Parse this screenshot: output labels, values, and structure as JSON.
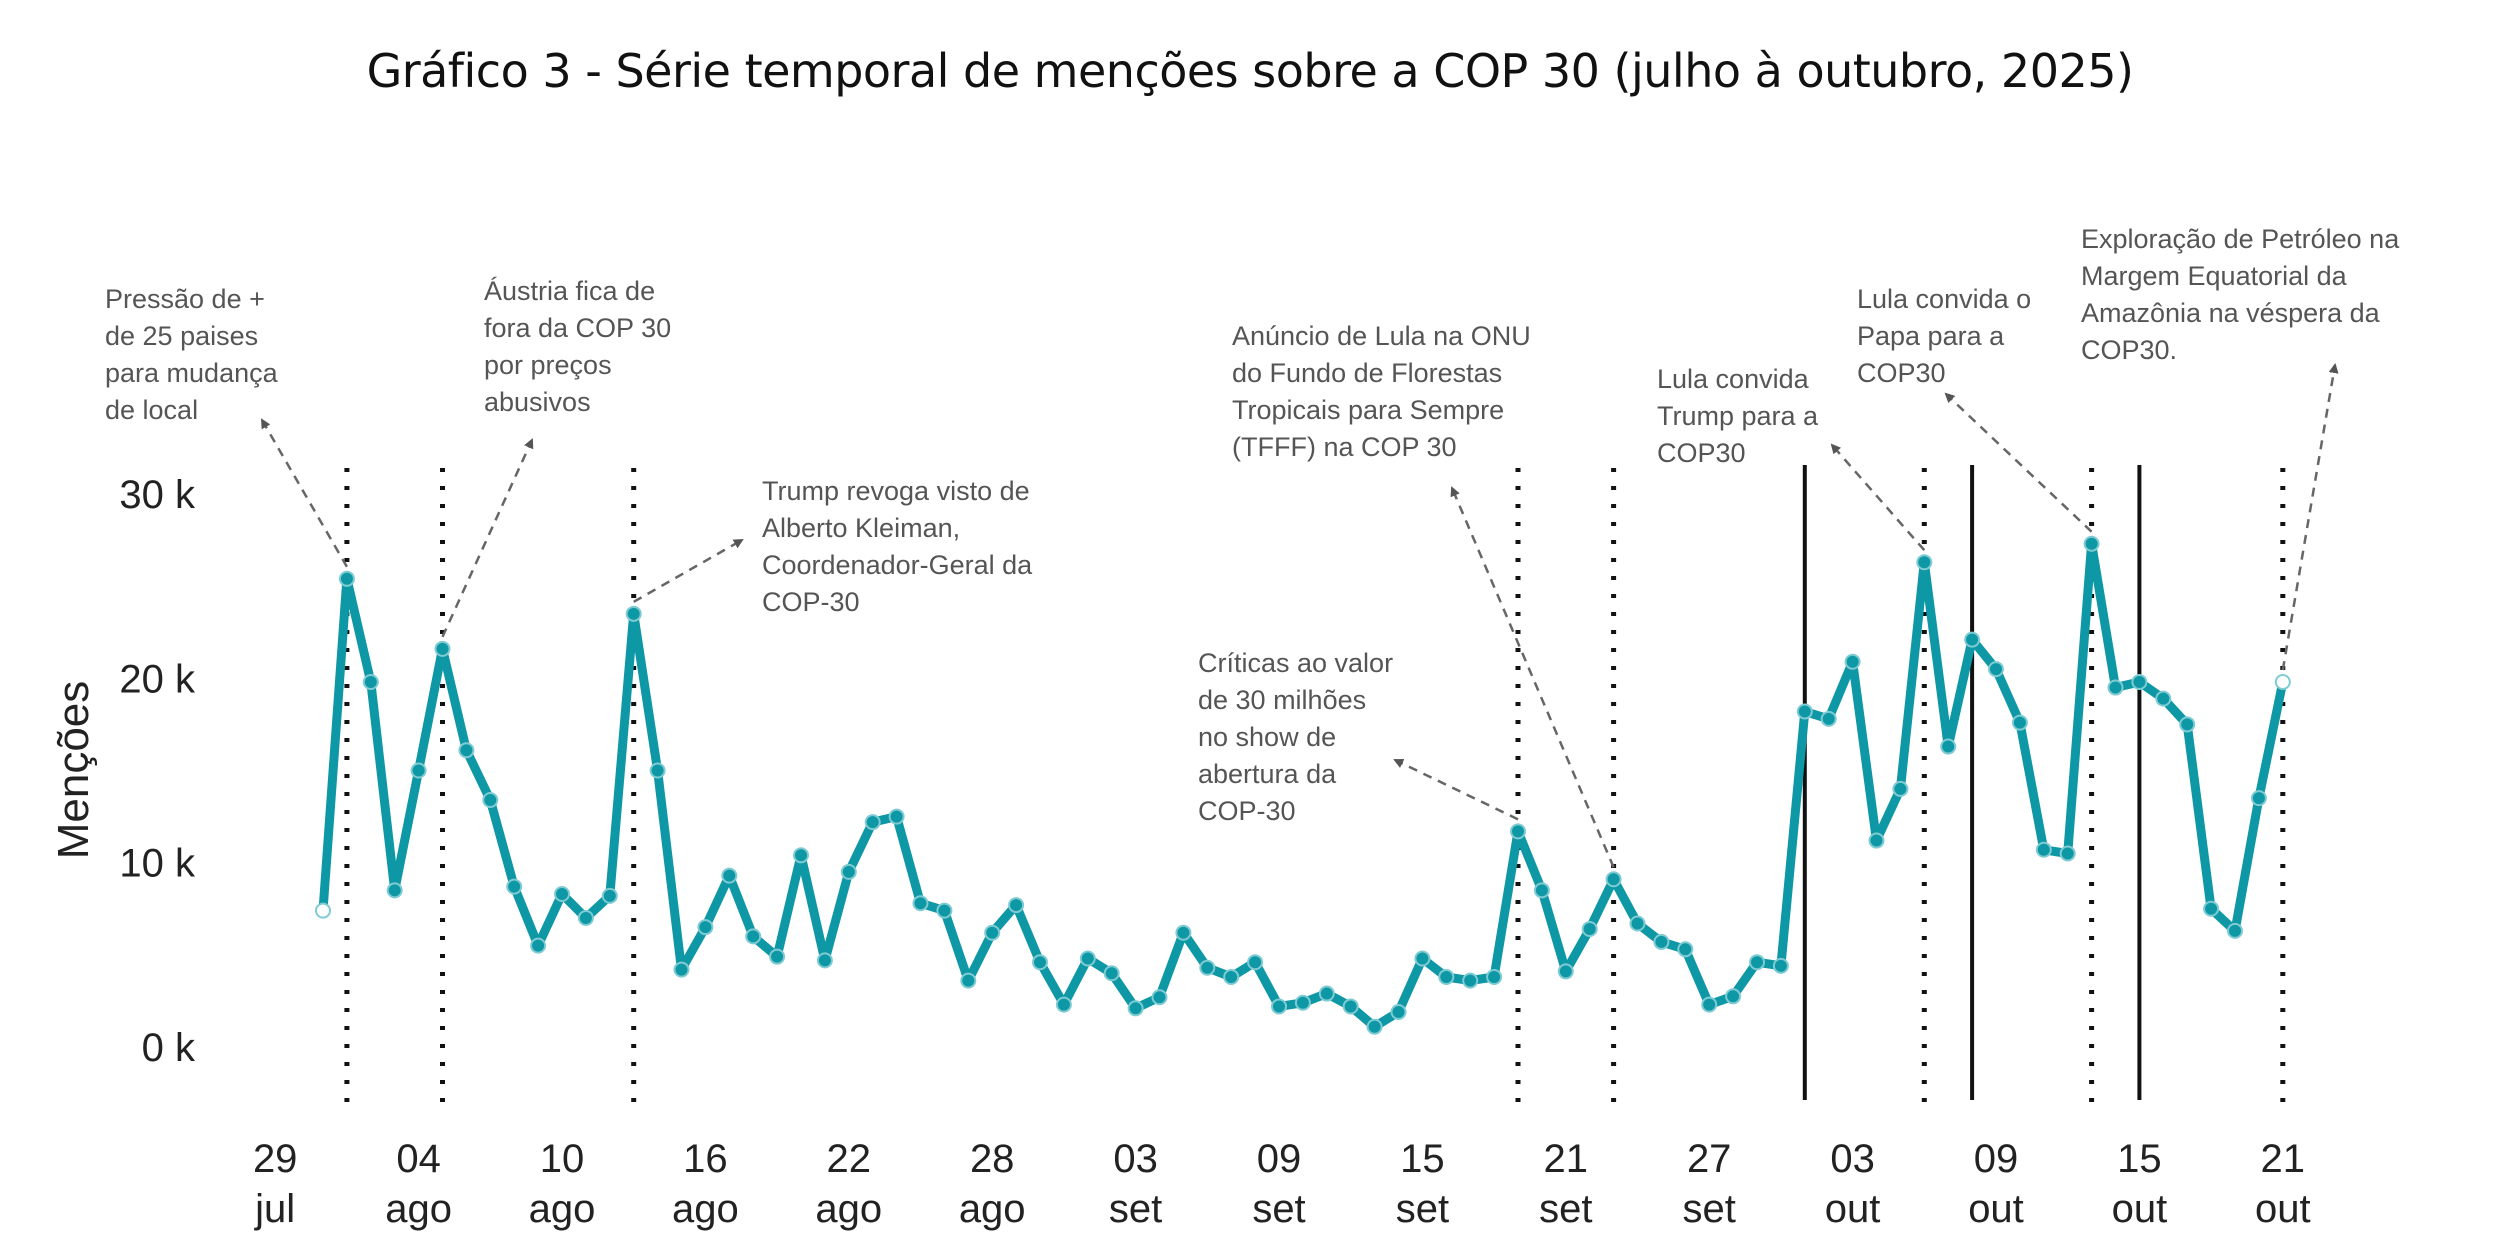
{
  "title": "Gráfico 3 - Série temporal de menções sobre a COP 30 (julho à outubro, 2025)",
  "chart_data": {
    "type": "line",
    "title": "Gráfico 3 - Série temporal de menções sobre a COP 30 (julho à outubro, 2025)",
    "xlabel": "",
    "ylabel": "Menções",
    "start_date": "2025-07-31",
    "x_unit": "day",
    "ylim": [
      0,
      30000
    ],
    "grid": false,
    "line_color": "#0e98a6",
    "yticks": [
      {
        "value": 0,
        "label": "0 k"
      },
      {
        "value": 10000,
        "label": "10 k"
      },
      {
        "value": 20000,
        "label": "20 k"
      },
      {
        "value": 30000,
        "label": "30 k"
      }
    ],
    "xticks": [
      {
        "day": "29",
        "month": "jul",
        "offset": -2
      },
      {
        "day": "04",
        "month": "ago",
        "offset": 4
      },
      {
        "day": "10",
        "month": "ago",
        "offset": 10
      },
      {
        "day": "16",
        "month": "ago",
        "offset": 16
      },
      {
        "day": "22",
        "month": "ago",
        "offset": 22
      },
      {
        "day": "28",
        "month": "ago",
        "offset": 28
      },
      {
        "day": "03",
        "month": "set",
        "offset": 34
      },
      {
        "day": "09",
        "month": "set",
        "offset": 40
      },
      {
        "day": "15",
        "month": "set",
        "offset": 46
      },
      {
        "day": "21",
        "month": "set",
        "offset": 52
      },
      {
        "day": "27",
        "month": "set",
        "offset": 58
      },
      {
        "day": "03",
        "month": "out",
        "offset": 64
      },
      {
        "day": "09",
        "month": "out",
        "offset": 70
      },
      {
        "day": "15",
        "month": "out",
        "offset": 76
      },
      {
        "day": "21",
        "month": "out",
        "offset": 82
      }
    ],
    "series": [
      {
        "name": "Menções",
        "values": [
          7400,
          25400,
          19800,
          8500,
          15000,
          21600,
          16100,
          13400,
          8700,
          5500,
          8300,
          7000,
          8200,
          23500,
          15000,
          4200,
          6500,
          9300,
          6000,
          4900,
          10400,
          4700,
          9500,
          12200,
          12500,
          7800,
          7400,
          3600,
          6200,
          7700,
          4600,
          2300,
          4800,
          4000,
          2100,
          2700,
          6200,
          4300,
          3800,
          4600,
          2200,
          2400,
          2900,
          2200,
          1100,
          1900,
          4800,
          3800,
          3600,
          3800,
          11700,
          8500,
          4100,
          6400,
          9100,
          6700,
          5700,
          5300,
          2300,
          2750,
          4600,
          4400,
          18200,
          17800,
          20900,
          11200,
          14000,
          26300,
          16300,
          22100,
          20500,
          17600,
          10700,
          10500,
          27300,
          19500,
          19800,
          18900,
          17500,
          7500,
          6300,
          13500,
          19800
        ]
      }
    ],
    "event_lines_dotted": [
      1,
      5,
      13,
      50,
      54,
      67,
      74,
      82
    ],
    "event_lines_solid": [
      62,
      69,
      76
    ],
    "annotations": [
      {
        "lines": [
          "Pressão de +",
          "de 25 paises",
          "para mudança",
          "de local"
        ],
        "anchor_index": 1
      },
      {
        "lines": [
          "Áustria fica de",
          "fora da COP 30",
          "por preços",
          "abusivos"
        ],
        "anchor_index": 5
      },
      {
        "lines": [
          "Trump revoga visto de",
          "Alberto Kleiman,",
          "Coordenador-Geral da",
          "COP-30"
        ],
        "anchor_index": 13
      },
      {
        "lines": [
          "Críticas ao valor",
          "de 30 milhões",
          "no show de",
          "abertura da",
          "COP-30"
        ],
        "anchor_index": 50
      },
      {
        "lines": [
          "Anúncio de Lula na ONU",
          "do Fundo de Florestas",
          "Tropicais para Sempre",
          "(TFFF) na COP 30"
        ],
        "anchor_index": 54
      },
      {
        "lines": [
          "Lula convida",
          "Trump para a",
          "COP30"
        ],
        "anchor_index": 67
      },
      {
        "lines": [
          "Lula convida o",
          "Papa para a",
          "COP30"
        ],
        "anchor_index": 74
      },
      {
        "lines": [
          "Exploração de Petróleo na",
          "Margem Equatorial da",
          "Amazônia na véspera da",
          "COP30."
        ],
        "anchor_index": 82
      }
    ]
  }
}
